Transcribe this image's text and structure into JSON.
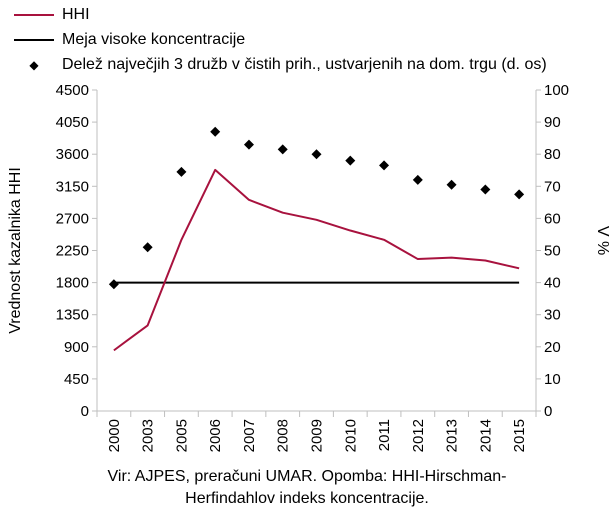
{
  "legend": {
    "hhi": "HHI",
    "threshold": "Meja visoke koncentracije",
    "share": "Delež največjih 3 družb v čistih prih., ustvarjenih na dom. trgu (d. os)"
  },
  "caption": {
    "line1": "Vir: AJPES, preračuni UMAR. Opomba: HHI-Hirschman-",
    "line2": "Herfindahlov indeks koncentracije."
  },
  "colors": {
    "hhi": "#a8123e",
    "threshold": "#000000",
    "share": "#000000",
    "axis": "#bfbfbf"
  },
  "chart_data": {
    "type": "line",
    "categories": [
      "2000",
      "2003",
      "2005",
      "2006",
      "2007",
      "2008",
      "2009",
      "2010",
      "2011",
      "2012",
      "2013",
      "2014",
      "2015"
    ],
    "ylabel": "Vrednost kazalnika HHI",
    "y2label": "V %",
    "ylim": [
      0,
      4500
    ],
    "y2lim": [
      0,
      100
    ],
    "yticks": [
      0,
      450,
      900,
      1350,
      1800,
      2250,
      2700,
      3150,
      3600,
      4050,
      4500
    ],
    "y2ticks": [
      0,
      10,
      20,
      30,
      40,
      50,
      60,
      70,
      80,
      90,
      100
    ],
    "grid": false,
    "series": [
      {
        "name": "HHI",
        "type": "line",
        "axis": "left",
        "values": [
          850,
          1200,
          2400,
          3380,
          2960,
          2780,
          2680,
          2530,
          2400,
          2130,
          2150,
          2110,
          2000
        ]
      },
      {
        "name": "Meja visoke koncentracije",
        "type": "line",
        "axis": "left",
        "values": [
          1800,
          1800,
          1800,
          1800,
          1800,
          1800,
          1800,
          1800,
          1800,
          1800,
          1800,
          1800,
          1800
        ]
      },
      {
        "name": "Delež največjih 3 družb v čistih prih., ustvarjenih na dom. trgu (d. os)",
        "type": "scatter",
        "axis": "right",
        "values": [
          39.5,
          51,
          74.5,
          87,
          83,
          81.5,
          80,
          78,
          76.5,
          72,
          70.5,
          69,
          67.5
        ]
      }
    ]
  }
}
